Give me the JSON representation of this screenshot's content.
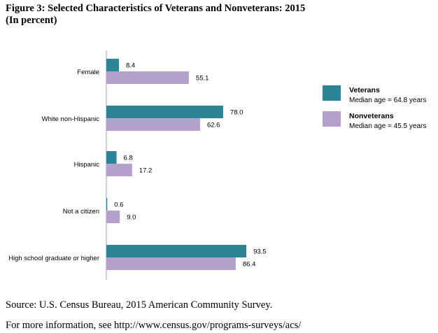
{
  "title": {
    "line1": "Figure 3: Selected Characteristics of Veterans and Nonveterans: 2015",
    "line2": "(In percent)"
  },
  "footer": {
    "source": "Source: U.S. Census Bureau, 2015 American Community Survey.",
    "more_info": "For more information, see http://www.census.gov/programs-surveys/acs/"
  },
  "chart_data": {
    "type": "bar",
    "orientation": "horizontal",
    "categories": [
      "Female",
      "White non-Hispanic",
      "Hispanic",
      "Not a citizen",
      "High school graduate or higher"
    ],
    "series": [
      {
        "name": "Veterans",
        "subtitle": "Median age = 64.8 years",
        "color": "#2c8596",
        "values": [
          8.4,
          78.0,
          6.8,
          0.6,
          93.5
        ],
        "labels": [
          "8.4",
          "78.0",
          "6.8",
          "0.6",
          "93.5"
        ]
      },
      {
        "name": "Nonveterans",
        "subtitle": "Median age = 45.5 years",
        "color": "#b3a1cb",
        "values": [
          55.1,
          62.6,
          17.2,
          9.0,
          86.4
        ],
        "labels": [
          "55.1",
          "62.6",
          "17.2",
          "9.0",
          "86.4"
        ]
      }
    ],
    "xlim": [
      0,
      100
    ],
    "grid": false,
    "legend_position": "right"
  }
}
